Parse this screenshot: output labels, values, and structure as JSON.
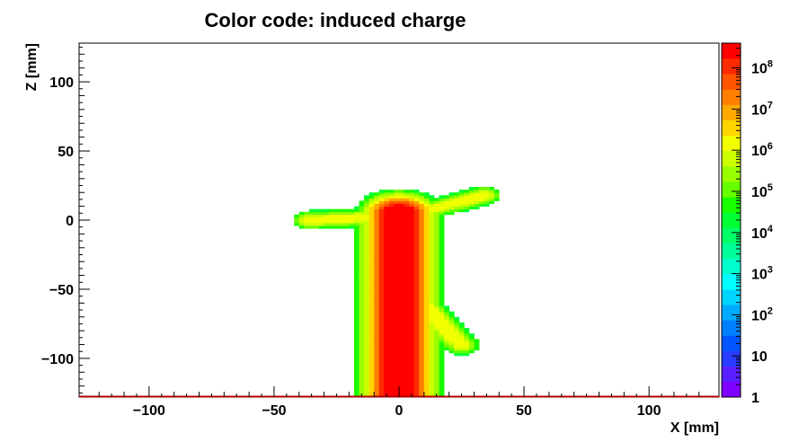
{
  "chart_data": {
    "type": "heatmap",
    "title": "Color code: induced charge",
    "xlabel": "X [mm]",
    "ylabel": "Z [mm]",
    "xlim": [
      -128,
      128
    ],
    "ylim": [
      -128,
      128
    ],
    "xticks": [
      -100,
      -50,
      0,
      50,
      100
    ],
    "xtick_labels": [
      "−100",
      "−50",
      "0",
      "50",
      "100"
    ],
    "yticks": [
      -100,
      -50,
      0,
      50,
      100
    ],
    "ytick_labels": [
      "−100",
      "−50",
      "0",
      "50",
      "100"
    ],
    "color_scale": "log",
    "zlim": [
      1,
      400000000
    ],
    "colorbar": {
      "ticks": [
        {
          "value": 1,
          "base": "1",
          "exp": ""
        },
        {
          "value": 10,
          "base": "10",
          "exp": ""
        },
        {
          "value": 100,
          "base": "10",
          "exp": "2"
        },
        {
          "value": 1000,
          "base": "10",
          "exp": "3"
        },
        {
          "value": 10000,
          "base": "10",
          "exp": "4"
        },
        {
          "value": 100000,
          "base": "10",
          "exp": "5"
        },
        {
          "value": 1000000,
          "base": "10",
          "exp": "6"
        },
        {
          "value": 10000000,
          "base": "10",
          "exp": "7"
        },
        {
          "value": 100000000,
          "base": "10",
          "exp": "8"
        }
      ],
      "colors": [
        "#7f00ff",
        "#5a1fff",
        "#2a3cff",
        "#0055ff",
        "#0080ff",
        "#00aaff",
        "#00d5ff",
        "#00ffff",
        "#00ffcc",
        "#00ff99",
        "#00ff66",
        "#00ff33",
        "#1aff00",
        "#66ff00",
        "#99ff00",
        "#ccff00",
        "#f2ff00",
        "#ffd500",
        "#ffaa00",
        "#ff8000",
        "#ff5500",
        "#ff2b00",
        "#ff0000"
      ]
    },
    "tracks": [
      {
        "name": "vertical",
        "x0": 0,
        "z0": 5,
        "x1": 0,
        "z1": -128,
        "width": 6,
        "peak": 300000000,
        "halo": 12
      },
      {
        "name": "branch-left",
        "x0": -36,
        "z0": 0,
        "x1": 0,
        "z1": 3,
        "width": 2,
        "peak": 1500000,
        "halo": 5
      },
      {
        "name": "branch-right",
        "x0": 2,
        "z0": 3,
        "x1": 34,
        "z1": 18,
        "width": 2,
        "peak": 1500000,
        "halo": 5
      },
      {
        "name": "branch-up",
        "x0": -4,
        "z0": 6,
        "x1": 4,
        "z1": 14,
        "width": 2,
        "peak": 1500000,
        "halo": 4
      },
      {
        "name": "branch-lower",
        "x0": 5,
        "z0": -52,
        "x1": 25,
        "z1": -90,
        "width": 2.5,
        "peak": 1500000,
        "halo": 5
      }
    ]
  }
}
